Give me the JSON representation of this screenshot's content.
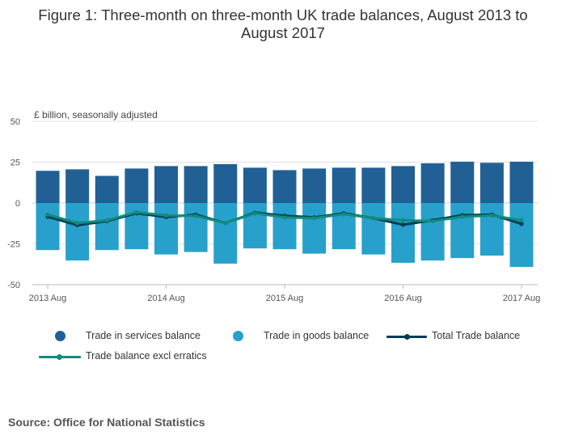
{
  "title_line1": "Figure 1: Three-month on three-month UK trade balances, August 2013 to",
  "title_line2": "August 2017",
  "unit_label": "£ billion, seasonally adjusted",
  "source": "Source: Office for National Statistics",
  "legend": {
    "services": "Trade in services balance",
    "goods": "Trade in goods balance",
    "total": "Total Trade balance",
    "excl": "Trade balance excl erratics"
  },
  "colors": {
    "services": "#206095",
    "goods": "#27a0cc",
    "total": "#003c57",
    "excl": "#118c7b",
    "grid": "#e0e0e0",
    "axis": "#bbbbbb"
  },
  "chart_data": {
    "type": "bar",
    "title": "Figure 1: Three-month on three-month UK trade balances, August 2013 to August 2017",
    "ylabel": "£ billion, seasonally adjusted",
    "ylim": [
      -50,
      50
    ],
    "yticks": [
      50,
      25,
      0,
      -25,
      -50
    ],
    "xtick_labels": [
      {
        "index": 0,
        "label": "2013 Aug"
      },
      {
        "index": 4,
        "label": "2014 Aug"
      },
      {
        "index": 8,
        "label": "2015 Aug"
      },
      {
        "index": 12,
        "label": "2016 Aug"
      },
      {
        "index": 16,
        "label": "2017 Aug"
      }
    ],
    "categories": [
      "2013 Aug",
      "2013 Nov",
      "2014 Feb",
      "2014 May",
      "2014 Aug",
      "2014 Nov",
      "2015 Feb",
      "2015 May",
      "2015 Aug",
      "2015 Nov",
      "2016 Feb",
      "2016 May",
      "2016 Aug",
      "2016 Nov",
      "2017 Feb",
      "2017 May",
      "2017 Aug"
    ],
    "series": [
      {
        "name": "Trade in services balance",
        "kind": "bar",
        "values": [
          19.7,
          20.6,
          16.6,
          21.1,
          22.6,
          22.6,
          23.8,
          21.6,
          20.1,
          21.1,
          21.6,
          21.6,
          22.6,
          24.3,
          25.3,
          24.6,
          25.3
        ]
      },
      {
        "name": "Trade in goods balance",
        "kind": "bar",
        "values": [
          -28.8,
          -35.2,
          -28.8,
          -28.3,
          -31.5,
          -30.0,
          -37.1,
          -27.8,
          -28.3,
          -31.0,
          -28.3,
          -31.5,
          -36.6,
          -35.2,
          -33.7,
          -32.2,
          -39.1
        ]
      },
      {
        "name": "Total Trade balance",
        "kind": "line",
        "values": [
          -8.4,
          -13.6,
          -11.1,
          -6.3,
          -8.6,
          -7.1,
          -12.3,
          -5.9,
          -7.8,
          -8.8,
          -6.3,
          -9.3,
          -13.3,
          -10.6,
          -7.4,
          -7.1,
          -12.8
        ]
      },
      {
        "name": "Trade balance excl erratics",
        "kind": "line",
        "values": [
          -7.1,
          -12.3,
          -10.6,
          -5.6,
          -7.6,
          -7.9,
          -12.3,
          -6.3,
          -8.8,
          -9.3,
          -6.8,
          -9.3,
          -10.6,
          -11.1,
          -8.4,
          -7.6,
          -10.6
        ]
      }
    ]
  }
}
